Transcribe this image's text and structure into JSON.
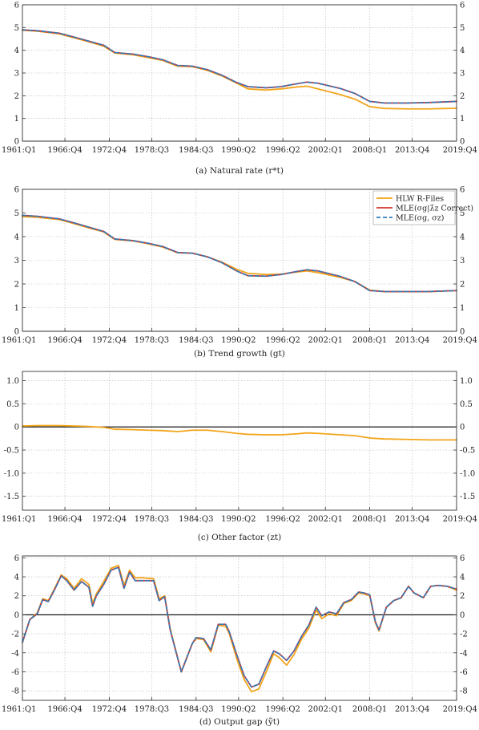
{
  "colors": {
    "hlw": "#f2a51a",
    "mle_correct": "#d6342c",
    "mle_sigma": "#2f7bbd",
    "zero_line": "#000000",
    "grid": "#b8b8b8"
  },
  "x_ticks": [
    "1961:Q1",
    "1966:Q4",
    "1972:Q4",
    "1978:Q3",
    "1984:Q3",
    "1990:Q2",
    "1996:Q2",
    "2002:Q1",
    "2008:Q1",
    "2013:Q4",
    "2019:Q4"
  ],
  "x_tick_positions": [
    1961.0,
    1966.75,
    1972.75,
    1978.5,
    1984.5,
    1990.25,
    1996.25,
    2002.0,
    2008.0,
    2013.75,
    2019.75
  ],
  "legend": {
    "items": [
      {
        "label": "HLW R-Files",
        "color_key": "hlw",
        "dash": false
      },
      {
        "label": "MLE(σg|λ̂z Correct)",
        "color_key": "mle_correct",
        "dash": false
      },
      {
        "label": "MLE(σg, σz)",
        "color_key": "mle_sigma",
        "dash": true
      }
    ]
  },
  "chart_data": [
    {
      "type": "line",
      "caption": "(a) Natural rate (r*t)",
      "xlim": [
        1961,
        2019.75
      ],
      "ylim": [
        0,
        6
      ],
      "yticks": [
        "0",
        "1",
        "2",
        "3",
        "4",
        "5",
        "6"
      ],
      "ytick_values": [
        0,
        1,
        2,
        3,
        4,
        5,
        6
      ],
      "zero_line": true,
      "series": [
        {
          "name": "HLW R-Files",
          "color_key": "hlw",
          "dash": false,
          "x": [
            1961,
            1963,
            1966,
            1968,
            1970,
            1972,
            1973.5,
            1976,
            1978,
            1980,
            1982,
            1984,
            1986,
            1988,
            1990,
            1991.5,
            1994,
            1996,
            1998,
            1999.5,
            2001,
            2004,
            2006,
            2008,
            2010,
            2013,
            2016,
            2019.75
          ],
          "y": [
            4.88,
            4.84,
            4.72,
            4.55,
            4.37,
            4.18,
            3.88,
            3.8,
            3.68,
            3.55,
            3.3,
            3.28,
            3.12,
            2.87,
            2.55,
            2.3,
            2.25,
            2.3,
            2.38,
            2.42,
            2.3,
            2.05,
            1.85,
            1.52,
            1.44,
            1.42,
            1.42,
            1.45
          ]
        },
        {
          "name": "MLE(σg|λ̂z Correct)",
          "color_key": "mle_correct",
          "dash": false,
          "x": [
            1961,
            1963,
            1966,
            1968,
            1970,
            1972,
            1973.5,
            1976,
            1978,
            1980,
            1982,
            1984,
            1986,
            1988,
            1990,
            1991.5,
            1994,
            1996,
            1998,
            1999.5,
            2001,
            2004,
            2006,
            2008,
            2010,
            2013,
            2016,
            2019.75
          ],
          "y": [
            4.9,
            4.86,
            4.75,
            4.58,
            4.4,
            4.22,
            3.9,
            3.83,
            3.72,
            3.58,
            3.33,
            3.3,
            3.15,
            2.9,
            2.58,
            2.4,
            2.35,
            2.4,
            2.52,
            2.6,
            2.55,
            2.32,
            2.1,
            1.75,
            1.68,
            1.68,
            1.7,
            1.75
          ]
        },
        {
          "name": "MLE(σg, σz)",
          "color_key": "mle_sigma",
          "dash": true,
          "x": [
            1961,
            1963,
            1966,
            1968,
            1970,
            1972,
            1973.5,
            1976,
            1978,
            1980,
            1982,
            1984,
            1986,
            1988,
            1990,
            1991.5,
            1994,
            1996,
            1998,
            1999.5,
            2001,
            2004,
            2006,
            2008,
            2010,
            2013,
            2016,
            2019.75
          ],
          "y": [
            4.9,
            4.86,
            4.75,
            4.58,
            4.4,
            4.22,
            3.9,
            3.83,
            3.72,
            3.58,
            3.33,
            3.3,
            3.15,
            2.9,
            2.58,
            2.4,
            2.35,
            2.4,
            2.52,
            2.6,
            2.55,
            2.32,
            2.1,
            1.75,
            1.68,
            1.68,
            1.7,
            1.75
          ]
        }
      ]
    },
    {
      "type": "line",
      "caption": "(b) Trend growth (gt)",
      "xlim": [
        1961,
        2019.75
      ],
      "ylim": [
        0,
        6
      ],
      "yticks": [
        "0",
        "1",
        "2",
        "3",
        "4",
        "5",
        "6"
      ],
      "ytick_values": [
        0,
        1,
        2,
        3,
        4,
        5,
        6
      ],
      "zero_line": true,
      "legend": true,
      "series": [
        {
          "name": "HLW R-Files",
          "color_key": "hlw",
          "dash": false,
          "x": [
            1961,
            1963,
            1966,
            1968,
            1970,
            1972,
            1973.5,
            1976,
            1978,
            1980,
            1982,
            1984,
            1986,
            1988,
            1990,
            1991.5,
            1994,
            1996,
            1998,
            1999.5,
            2001,
            2004,
            2006,
            2008,
            2010,
            2013,
            2016,
            2019.75
          ],
          "y": [
            4.85,
            4.82,
            4.72,
            4.55,
            4.37,
            4.2,
            3.88,
            3.82,
            3.7,
            3.56,
            3.32,
            3.3,
            3.15,
            2.92,
            2.62,
            2.45,
            2.4,
            2.42,
            2.5,
            2.55,
            2.48,
            2.28,
            2.1,
            1.74,
            1.68,
            1.68,
            1.68,
            1.72
          ]
        },
        {
          "name": "MLE(σg|λ̂z Correct)",
          "color_key": "mle_correct",
          "dash": false,
          "x": [
            1961,
            1963,
            1966,
            1968,
            1970,
            1972,
            1973.5,
            1976,
            1978,
            1980,
            1982,
            1984,
            1986,
            1988,
            1990,
            1991.5,
            1994,
            1996,
            1998,
            1999.5,
            2001,
            2004,
            2006,
            2008,
            2010,
            2013,
            2016,
            2019.75
          ],
          "y": [
            4.9,
            4.86,
            4.75,
            4.58,
            4.4,
            4.22,
            3.9,
            3.83,
            3.72,
            3.58,
            3.33,
            3.3,
            3.15,
            2.9,
            2.55,
            2.35,
            2.33,
            2.4,
            2.52,
            2.6,
            2.55,
            2.32,
            2.1,
            1.72,
            1.68,
            1.68,
            1.68,
            1.72
          ]
        },
        {
          "name": "MLE(σg, σz)",
          "color_key": "mle_sigma",
          "dash": true,
          "x": [
            1961,
            1963,
            1966,
            1968,
            1970,
            1972,
            1973.5,
            1976,
            1978,
            1980,
            1982,
            1984,
            1986,
            1988,
            1990,
            1991.5,
            1994,
            1996,
            1998,
            1999.5,
            2001,
            2004,
            2006,
            2008,
            2010,
            2013,
            2016,
            2019.75
          ],
          "y": [
            4.9,
            4.86,
            4.75,
            4.58,
            4.4,
            4.22,
            3.9,
            3.83,
            3.72,
            3.58,
            3.33,
            3.3,
            3.15,
            2.9,
            2.55,
            2.35,
            2.33,
            2.4,
            2.52,
            2.6,
            2.55,
            2.32,
            2.1,
            1.72,
            1.68,
            1.68,
            1.68,
            1.72
          ]
        }
      ]
    },
    {
      "type": "line",
      "caption": "(c) Other factor (zt)",
      "xlim": [
        1961,
        2019.75
      ],
      "ylim": [
        -1.8,
        1.2
      ],
      "yticks": [
        "-1.5",
        "-1.0",
        "-0.5",
        "0",
        "0.5",
        "1.0"
      ],
      "ytick_values": [
        -1.5,
        -1.0,
        -0.5,
        0,
        0.5,
        1.0
      ],
      "zero_line": true,
      "series": [
        {
          "name": "HLW R-Files",
          "color_key": "hlw",
          "dash": false,
          "x": [
            1961,
            1963,
            1966,
            1968,
            1970,
            1972,
            1973.5,
            1976,
            1978,
            1980,
            1982,
            1984,
            1986,
            1988,
            1990,
            1991.5,
            1994,
            1996,
            1998,
            1999.5,
            2001,
            2004,
            2006,
            2008,
            2010,
            2013,
            2016,
            2019.75
          ],
          "y": [
            0.02,
            0.03,
            0.03,
            0.02,
            0.01,
            -0.01,
            -0.05,
            -0.06,
            -0.07,
            -0.08,
            -0.1,
            -0.07,
            -0.07,
            -0.1,
            -0.14,
            -0.16,
            -0.17,
            -0.17,
            -0.15,
            -0.13,
            -0.14,
            -0.17,
            -0.19,
            -0.24,
            -0.26,
            -0.27,
            -0.28,
            -0.28
          ]
        }
      ]
    },
    {
      "type": "line",
      "caption": "(d) Output gap (ỹt)",
      "xlim": [
        1961,
        2019.75
      ],
      "ylim": [
        -9,
        6.2
      ],
      "yticks": [
        "-8",
        "-6",
        "-4",
        "-2",
        "0",
        "2",
        "4",
        "6"
      ],
      "ytick_values": [
        -8,
        -6,
        -4,
        -2,
        0,
        2,
        4,
        6
      ],
      "zero_line": true,
      "series": [
        {
          "name": "HLW R-Files",
          "color_key": "hlw",
          "dash": false,
          "x": [
            1961,
            1962,
            1963,
            1963.75,
            1964.5,
            1965.25,
            1966.25,
            1967,
            1968,
            1969,
            1970,
            1970.5,
            1971,
            1972,
            1973,
            1974,
            1974.75,
            1975.5,
            1976.25,
            1977.25,
            1978.75,
            1979.5,
            1980.25,
            1981,
            1982.5,
            1983,
            1984,
            1984.5,
            1985.5,
            1986.5,
            1987.5,
            1988.5,
            1989,
            1990,
            1991,
            1992,
            1993,
            1994,
            1995,
            1995.75,
            1996.75,
            1997.75,
            1998.75,
            1999.75,
            2000.75,
            2001.5,
            2002.5,
            2003.5,
            2004.5,
            2005.5,
            2006.5,
            2007.25,
            2008,
            2008.75,
            2009.25,
            2010.25,
            2011.25,
            2012.25,
            2013.25,
            2014,
            2015.25,
            2016.25,
            2017.25,
            2018.5,
            2019.75
          ],
          "y": [
            -2.9,
            -0.5,
            0.2,
            1.7,
            1.5,
            2.6,
            4.2,
            3.8,
            2.8,
            3.8,
            3.2,
            1.2,
            2.2,
            3.5,
            4.9,
            5.2,
            3.1,
            4.7,
            3.9,
            3.9,
            3.8,
            1.7,
            2.0,
            -1.5,
            -6.0,
            -5.0,
            -3.0,
            -2.5,
            -2.6,
            -3.9,
            -1.1,
            -1.2,
            -2.0,
            -4.6,
            -6.8,
            -8.1,
            -7.8,
            -6.0,
            -4.1,
            -4.5,
            -5.3,
            -4.2,
            -2.6,
            -1.4,
            0.5,
            -0.4,
            0.1,
            -0.1,
            1.2,
            1.5,
            2.3,
            2.2,
            2.0,
            -0.8,
            -1.7,
            0.8,
            1.5,
            1.8,
            3.0,
            2.3,
            1.8,
            3.0,
            3.1,
            3.0,
            2.6
          ]
        },
        {
          "name": "MLE(σg|λ̂z Correct)",
          "color_key": "mle_correct",
          "dash": false,
          "x": [
            1961,
            1962,
            1963,
            1963.75,
            1964.5,
            1965.25,
            1966.25,
            1967,
            1968,
            1969,
            1970,
            1970.5,
            1971,
            1972,
            1973,
            1974,
            1974.75,
            1975.5,
            1976.25,
            1977.25,
            1978.75,
            1979.5,
            1980.25,
            1981,
            1982.5,
            1983,
            1984,
            1984.5,
            1985.5,
            1986.5,
            1987.5,
            1988.5,
            1989,
            1990,
            1991,
            1992,
            1993,
            1994,
            1995,
            1995.75,
            1996.75,
            1997.75,
            1998.75,
            1999.75,
            2000.75,
            2001.5,
            2002.5,
            2003.5,
            2004.5,
            2005.5,
            2006.5,
            2007.25,
            2008,
            2008.75,
            2009.25,
            2010.25,
            2011.25,
            2012.25,
            2013.25,
            2014,
            2015.25,
            2016.25,
            2017.25,
            2018.5,
            2019.75
          ],
          "y": [
            -2.9,
            -0.5,
            0.1,
            1.6,
            1.4,
            2.5,
            4.1,
            3.6,
            2.6,
            3.5,
            2.9,
            0.9,
            2.0,
            3.2,
            4.7,
            5.0,
            2.8,
            4.5,
            3.6,
            3.6,
            3.6,
            1.5,
            1.9,
            -1.6,
            -6.0,
            -5.0,
            -3.0,
            -2.4,
            -2.5,
            -3.7,
            -1.0,
            -1.0,
            -1.8,
            -4.2,
            -6.4,
            -7.6,
            -7.3,
            -5.5,
            -3.8,
            -4.1,
            -4.8,
            -3.8,
            -2.3,
            -1.1,
            0.8,
            -0.1,
            0.3,
            0.1,
            1.3,
            1.6,
            2.4,
            2.3,
            2.1,
            -0.7,
            -1.6,
            0.8,
            1.5,
            1.8,
            3.0,
            2.3,
            1.8,
            3.0,
            3.1,
            3.0,
            2.7
          ]
        },
        {
          "name": "MLE(σg, σz)",
          "color_key": "mle_sigma",
          "dash": true,
          "x": [
            1961,
            1962,
            1963,
            1963.75,
            1964.5,
            1965.25,
            1966.25,
            1967,
            1968,
            1969,
            1970,
            1970.5,
            1971,
            1972,
            1973,
            1974,
            1974.75,
            1975.5,
            1976.25,
            1977.25,
            1978.75,
            1979.5,
            1980.25,
            1981,
            1982.5,
            1983,
            1984,
            1984.5,
            1985.5,
            1986.5,
            1987.5,
            1988.5,
            1989,
            1990,
            1991,
            1992,
            1993,
            1994,
            1995,
            1995.75,
            1996.75,
            1997.75,
            1998.75,
            1999.75,
            2000.75,
            2001.5,
            2002.5,
            2003.5,
            2004.5,
            2005.5,
            2006.5,
            2007.25,
            2008,
            2008.75,
            2009.25,
            2010.25,
            2011.25,
            2012.25,
            2013.25,
            2014,
            2015.25,
            2016.25,
            2017.25,
            2018.5,
            2019.75
          ],
          "y": [
            -2.9,
            -0.5,
            0.1,
            1.6,
            1.4,
            2.5,
            4.1,
            3.6,
            2.6,
            3.5,
            2.9,
            0.9,
            2.0,
            3.2,
            4.7,
            5.0,
            2.8,
            4.5,
            3.6,
            3.6,
            3.6,
            1.5,
            1.9,
            -1.6,
            -6.0,
            -5.0,
            -3.0,
            -2.4,
            -2.5,
            -3.7,
            -1.0,
            -1.0,
            -1.8,
            -4.2,
            -6.4,
            -7.6,
            -7.3,
            -5.5,
            -3.8,
            -4.1,
            -4.8,
            -3.8,
            -2.3,
            -1.1,
            0.8,
            -0.1,
            0.3,
            0.1,
            1.3,
            1.6,
            2.4,
            2.3,
            2.1,
            -0.7,
            -1.6,
            0.8,
            1.5,
            1.8,
            3.0,
            2.3,
            1.8,
            3.0,
            3.1,
            3.0,
            2.7
          ]
        }
      ]
    }
  ]
}
